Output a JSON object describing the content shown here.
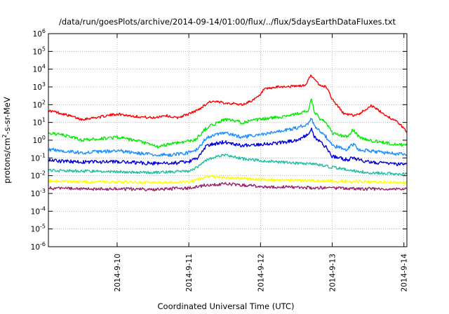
{
  "chart_data": {
    "type": "line",
    "title": "/data/run/goesPlots/archive/2014-09-14/01:00/flux/../flux/5daysEarthDataFluxes.txt",
    "xlabel": "Coordinated Universal Time (UTC)",
    "ylabel": {
      "prefix": "protons/cm",
      "sup": "2",
      "suffix": "-s-sr-MeV"
    },
    "yscale": "log",
    "ylim": [
      1e-06,
      1000000.0
    ],
    "xlim": [
      "2014-09-09T01:00",
      "2014-09-14T01:00"
    ],
    "yticks": [
      {
        "value": 1e-06,
        "base": "10",
        "exp": "-6"
      },
      {
        "value": 1e-05,
        "base": "10",
        "exp": "-5"
      },
      {
        "value": 0.0001,
        "base": "10",
        "exp": "-4"
      },
      {
        "value": 0.001,
        "base": "10",
        "exp": "-3"
      },
      {
        "value": 0.01,
        "base": "10",
        "exp": "-2"
      },
      {
        "value": 0.1,
        "base": "10",
        "exp": "-1"
      },
      {
        "value": 1,
        "base": "10",
        "exp": "0"
      },
      {
        "value": 10.0,
        "base": "10",
        "exp": "1"
      },
      {
        "value": 100.0,
        "base": "10",
        "exp": "2"
      },
      {
        "value": 1000.0,
        "base": "10",
        "exp": "3"
      },
      {
        "value": 10000.0,
        "base": "10",
        "exp": "4"
      },
      {
        "value": 100000.0,
        "base": "10",
        "exp": "5"
      },
      {
        "value": 1000000.0,
        "base": "10",
        "exp": "6"
      }
    ],
    "xticks": [
      {
        "value": "2014-09-10T00:00",
        "label": "2014-9-10"
      },
      {
        "value": "2014-09-11T00:00",
        "label": "2014-9-11"
      },
      {
        "value": "2014-09-12T00:00",
        "label": "2014-9-12"
      },
      {
        "value": "2014-09-13T00:00",
        "label": "2014-9-13"
      },
      {
        "value": "2014-09-14T00:00",
        "label": "2014-9-14"
      }
    ],
    "grid": true,
    "legend": "none",
    "series": [
      {
        "color": "#ff0000",
        "noise": 0.07,
        "x": [
          "2014-09-09T01:00",
          "2014-09-09T03:00",
          "2014-09-09T06:00",
          "2014-09-09T12:00",
          "2014-09-09T18:00",
          "2014-09-10T00:00",
          "2014-09-10T06:00",
          "2014-09-10T12:00",
          "2014-09-10T16:00",
          "2014-09-10T20:00",
          "2014-09-11T00:00",
          "2014-09-11T03:00",
          "2014-09-11T07:00",
          "2014-09-11T12:00",
          "2014-09-11T18:00",
          "2014-09-11T22:00",
          "2014-09-12T00:00",
          "2014-09-12T01:00",
          "2014-09-12T06:00",
          "2014-09-12T12:00",
          "2014-09-12T15:00",
          "2014-09-12T17:00",
          "2014-09-12T18:00",
          "2014-09-12T20:00",
          "2014-09-12T22:00",
          "2014-09-12T23:00",
          "2014-09-13T00:00",
          "2014-09-13T04:00",
          "2014-09-13T07:00",
          "2014-09-13T09:00",
          "2014-09-13T13:00",
          "2014-09-13T18:00",
          "2014-09-13T22:00",
          "2014-09-14T01:00"
        ],
        "y": [
          45,
          40,
          30,
          15,
          20,
          30,
          22,
          18,
          25,
          18,
          30,
          50,
          150,
          130,
          100,
          200,
          350,
          700,
          1000,
          1100,
          1200,
          5000,
          2500,
          1200,
          1000,
          500,
          200,
          30,
          25,
          30,
          90,
          25,
          10,
          3
        ]
      },
      {
        "color": "#00ee00",
        "noise": 0.09,
        "x": [
          "2014-09-09T01:00",
          "2014-09-09T04:00",
          "2014-09-09T09:00",
          "2014-09-09T12:00",
          "2014-09-09T18:00",
          "2014-09-10T00:00",
          "2014-09-10T08:00",
          "2014-09-10T14:00",
          "2014-09-10T17:00",
          "2014-09-10T22:00",
          "2014-09-11T02:00",
          "2014-09-11T06:00",
          "2014-09-11T12:00",
          "2014-09-11T18:00",
          "2014-09-12T00:00",
          "2014-09-12T06:00",
          "2014-09-12T12:00",
          "2014-09-12T16:00",
          "2014-09-12T17:00",
          "2014-09-12T18:00",
          "2014-09-12T20:00",
          "2014-09-12T22:00",
          "2014-09-13T00:00",
          "2014-09-13T05:00",
          "2014-09-13T07:00",
          "2014-09-13T09:00",
          "2014-09-13T12:00",
          "2014-09-13T18:00",
          "2014-09-14T01:00"
        ],
        "y": [
          2.5,
          2.2,
          1.5,
          1.0,
          1.2,
          1.5,
          0.8,
          0.4,
          0.6,
          0.8,
          1.0,
          5,
          15,
          10,
          15,
          20,
          30,
          45,
          200,
          40,
          15,
          10,
          2.5,
          1.5,
          4,
          1.5,
          1.0,
          0.7,
          0.5
        ]
      },
      {
        "color": "#1e90ff",
        "noise": 0.1,
        "x": [
          "2014-09-09T01:00",
          "2014-09-09T12:00",
          "2014-09-10T00:00",
          "2014-09-10T12:00",
          "2014-09-10T18:00",
          "2014-09-11T00:00",
          "2014-09-11T03:00",
          "2014-09-11T06:00",
          "2014-09-11T12:00",
          "2014-09-11T18:00",
          "2014-09-12T00:00",
          "2014-09-12T06:00",
          "2014-09-12T12:00",
          "2014-09-12T16:00",
          "2014-09-12T17:00",
          "2014-09-12T18:00",
          "2014-09-12T20:00",
          "2014-09-12T22:00",
          "2014-09-13T00:00",
          "2014-09-13T05:00",
          "2014-09-13T07:00",
          "2014-09-13T09:00",
          "2014-09-13T12:00",
          "2014-09-14T01:00"
        ],
        "y": [
          0.3,
          0.2,
          0.25,
          0.15,
          0.15,
          0.2,
          0.3,
          1.5,
          2.5,
          1.5,
          2.0,
          3.0,
          5.0,
          8.0,
          20,
          6.0,
          3.0,
          1.5,
          0.5,
          0.3,
          0.6,
          0.3,
          0.25,
          0.15
        ]
      },
      {
        "color": "#0000dd",
        "noise": 0.1,
        "x": [
          "2014-09-09T01:00",
          "2014-09-09T12:00",
          "2014-09-10T00:00",
          "2014-09-10T12:00",
          "2014-09-10T18:00",
          "2014-09-11T00:00",
          "2014-09-11T03:00",
          "2014-09-11T06:00",
          "2014-09-11T12:00",
          "2014-09-11T18:00",
          "2014-09-12T00:00",
          "2014-09-12T06:00",
          "2014-09-12T12:00",
          "2014-09-12T16:00",
          "2014-09-12T17:00",
          "2014-09-12T18:00",
          "2014-09-12T20:00",
          "2014-09-12T22:00",
          "2014-09-13T00:00",
          "2014-09-13T05:00",
          "2014-09-13T07:00",
          "2014-09-13T09:00",
          "2014-09-13T12:00",
          "2014-09-14T01:00"
        ],
        "y": [
          0.07,
          0.06,
          0.06,
          0.05,
          0.05,
          0.06,
          0.1,
          0.5,
          0.8,
          0.5,
          0.6,
          0.7,
          1.0,
          2.0,
          5.0,
          1.5,
          0.8,
          0.4,
          0.12,
          0.08,
          0.1,
          0.08,
          0.06,
          0.04
        ]
      },
      {
        "color": "#20c0a0",
        "noise": 0.08,
        "x": [
          "2014-09-09T01:00",
          "2014-09-09T12:00",
          "2014-09-10T00:00",
          "2014-09-10T12:00",
          "2014-09-11T00:00",
          "2014-09-11T03:00",
          "2014-09-11T06:00",
          "2014-09-11T12:00",
          "2014-09-11T18:00",
          "2014-09-12T00:00",
          "2014-09-12T06:00",
          "2014-09-12T12:00",
          "2014-09-12T18:00",
          "2014-09-13T00:00",
          "2014-09-13T06:00",
          "2014-09-13T12:00",
          "2014-09-14T01:00"
        ],
        "y": [
          0.02,
          0.018,
          0.017,
          0.015,
          0.018,
          0.03,
          0.08,
          0.15,
          0.09,
          0.07,
          0.06,
          0.05,
          0.045,
          0.03,
          0.02,
          0.015,
          0.012
        ]
      },
      {
        "color": "#ffff00",
        "noise": 0.08,
        "x": [
          "2014-09-09T01:00",
          "2014-09-09T12:00",
          "2014-09-10T00:00",
          "2014-09-10T12:00",
          "2014-09-11T00:00",
          "2014-09-11T03:00",
          "2014-09-11T06:00",
          "2014-09-11T12:00",
          "2014-09-11T18:00",
          "2014-09-12T00:00",
          "2014-09-12T12:00",
          "2014-09-13T00:00",
          "2014-09-13T12:00",
          "2014-09-14T01:00"
        ],
        "y": [
          0.005,
          0.0045,
          0.0045,
          0.004,
          0.0045,
          0.006,
          0.009,
          0.008,
          0.007,
          0.006,
          0.0055,
          0.005,
          0.0045,
          0.004
        ]
      },
      {
        "color": "#99226b",
        "noise": 0.09,
        "x": [
          "2014-09-09T01:00",
          "2014-09-09T12:00",
          "2014-09-10T00:00",
          "2014-09-10T12:00",
          "2014-09-11T00:00",
          "2014-09-11T06:00",
          "2014-09-11T12:00",
          "2014-09-11T18:00",
          "2014-09-12T00:00",
          "2014-09-12T12:00",
          "2014-09-13T00:00",
          "2014-09-13T12:00",
          "2014-09-14T01:00"
        ],
        "y": [
          0.002,
          0.0018,
          0.0018,
          0.0017,
          0.002,
          0.003,
          0.0035,
          0.003,
          0.0025,
          0.0022,
          0.002,
          0.0018,
          0.0017
        ]
      }
    ]
  }
}
